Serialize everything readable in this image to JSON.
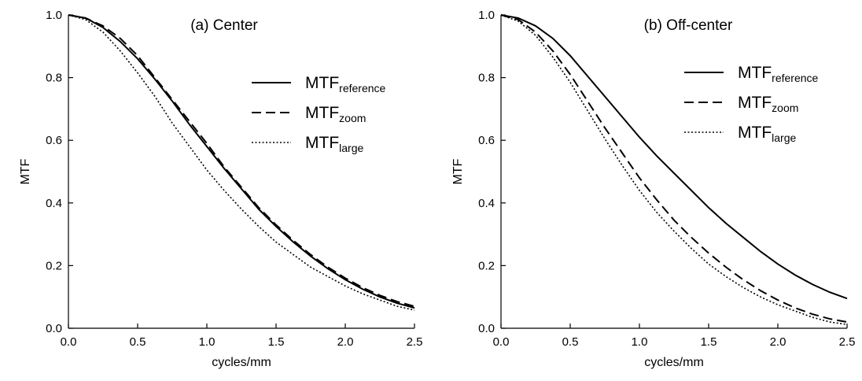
{
  "chart_data": [
    {
      "type": "line",
      "title": "(a) Center",
      "xlabel": "cycles/mm",
      "ylabel": "MTF",
      "xlim": [
        0,
        2.5
      ],
      "ylim": [
        0,
        1
      ],
      "xticks": [
        "0.0",
        "0.5",
        "1.0",
        "1.5",
        "2.0",
        "2.5"
      ],
      "yticks": [
        "0.0",
        "0.2",
        "0.4",
        "0.6",
        "0.8",
        "1.0"
      ],
      "grid": false,
      "legend_position": "top-right",
      "series": [
        {
          "name_main": "MTF",
          "name_sub": "reference",
          "style": "solid",
          "x": [
            0,
            0.125,
            0.25,
            0.375,
            0.5,
            0.625,
            0.75,
            0.875,
            1.0,
            1.125,
            1.25,
            1.375,
            1.5,
            1.625,
            1.75,
            1.875,
            2.0,
            2.125,
            2.25,
            2.375,
            2.5
          ],
          "y": [
            1.0,
            0.99,
            0.96,
            0.915,
            0.86,
            0.795,
            0.725,
            0.65,
            0.58,
            0.51,
            0.445,
            0.38,
            0.325,
            0.275,
            0.23,
            0.19,
            0.155,
            0.125,
            0.1,
            0.08,
            0.065
          ]
        },
        {
          "name_main": "MTF",
          "name_sub": "zoom",
          "style": "dashed",
          "x": [
            0,
            0.125,
            0.25,
            0.375,
            0.5,
            0.625,
            0.75,
            0.875,
            1.0,
            1.125,
            1.25,
            1.375,
            1.5,
            1.625,
            1.75,
            1.875,
            2.0,
            2.125,
            2.25,
            2.375,
            2.5
          ],
          "y": [
            1.0,
            0.99,
            0.965,
            0.925,
            0.87,
            0.8,
            0.73,
            0.66,
            0.59,
            0.515,
            0.45,
            0.385,
            0.33,
            0.28,
            0.235,
            0.195,
            0.16,
            0.13,
            0.105,
            0.085,
            0.07
          ]
        },
        {
          "name_main": "MTF",
          "name_sub": "large",
          "style": "dotted",
          "x": [
            0,
            0.125,
            0.25,
            0.375,
            0.5,
            0.625,
            0.75,
            0.875,
            1.0,
            1.125,
            1.25,
            1.375,
            1.5,
            1.625,
            1.75,
            1.875,
            2.0,
            2.125,
            2.25,
            2.375,
            2.5
          ],
          "y": [
            1.0,
            0.985,
            0.945,
            0.885,
            0.815,
            0.74,
            0.655,
            0.58,
            0.505,
            0.44,
            0.38,
            0.325,
            0.275,
            0.235,
            0.195,
            0.165,
            0.135,
            0.11,
            0.09,
            0.07,
            0.058
          ]
        }
      ]
    },
    {
      "type": "line",
      "title": "(b) Off-center",
      "xlabel": "cycles/mm",
      "ylabel": "MTF",
      "xlim": [
        0,
        2.5
      ],
      "ylim": [
        0,
        1
      ],
      "xticks": [
        "0.0",
        "0.5",
        "1.0",
        "1.5",
        "2.0",
        "2.5"
      ],
      "yticks": [
        "0.0",
        "0.2",
        "0.4",
        "0.6",
        "0.8",
        "1.0"
      ],
      "grid": false,
      "legend_position": "top-right",
      "series": [
        {
          "name_main": "MTF",
          "name_sub": "reference",
          "style": "solid",
          "x": [
            0,
            0.125,
            0.25,
            0.375,
            0.5,
            0.625,
            0.75,
            0.875,
            1.0,
            1.125,
            1.25,
            1.375,
            1.5,
            1.625,
            1.75,
            1.875,
            2.0,
            2.125,
            2.25,
            2.375,
            2.5
          ],
          "y": [
            1.0,
            0.99,
            0.965,
            0.925,
            0.87,
            0.805,
            0.74,
            0.675,
            0.61,
            0.55,
            0.495,
            0.44,
            0.385,
            0.335,
            0.29,
            0.245,
            0.205,
            0.17,
            0.14,
            0.115,
            0.095
          ]
        },
        {
          "name_main": "MTF",
          "name_sub": "zoom",
          "style": "dashed",
          "x": [
            0,
            0.125,
            0.25,
            0.375,
            0.5,
            0.625,
            0.75,
            0.875,
            1.0,
            1.125,
            1.25,
            1.375,
            1.5,
            1.625,
            1.75,
            1.875,
            2.0,
            2.125,
            2.25,
            2.375,
            2.5
          ],
          "y": [
            1.0,
            0.985,
            0.945,
            0.885,
            0.81,
            0.725,
            0.64,
            0.56,
            0.48,
            0.41,
            0.345,
            0.29,
            0.24,
            0.195,
            0.155,
            0.12,
            0.09,
            0.065,
            0.045,
            0.03,
            0.02
          ]
        },
        {
          "name_main": "MTF",
          "name_sub": "large",
          "style": "dotted",
          "x": [
            0,
            0.125,
            0.25,
            0.375,
            0.5,
            0.625,
            0.75,
            0.875,
            1.0,
            1.125,
            1.25,
            1.375,
            1.5,
            1.625,
            1.75,
            1.875,
            2.0,
            2.125,
            2.25,
            2.375,
            2.5
          ],
          "y": [
            1.0,
            0.98,
            0.935,
            0.865,
            0.785,
            0.695,
            0.605,
            0.52,
            0.44,
            0.37,
            0.31,
            0.255,
            0.205,
            0.165,
            0.13,
            0.1,
            0.075,
            0.055,
            0.035,
            0.02,
            0.012
          ]
        }
      ]
    }
  ]
}
